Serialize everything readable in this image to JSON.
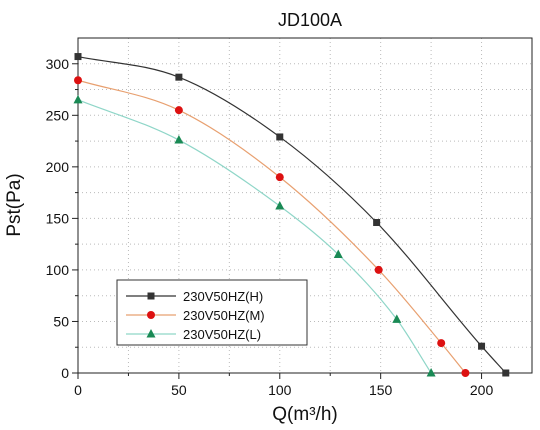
{
  "chart_data": {
    "type": "line",
    "title": "JD100A",
    "xlabel": "Q(m³/h)",
    "ylabel": "Pst(Pa)",
    "xlim": [
      0,
      225
    ],
    "ylim": [
      0,
      325
    ],
    "xticks": [
      0,
      50,
      100,
      150,
      200
    ],
    "yticks": [
      0,
      50,
      100,
      150,
      200,
      250,
      300
    ],
    "grid": true,
    "legend_position": "bottom-left",
    "series": [
      {
        "name": "230V50HZ(H)",
        "color": "#333333",
        "marker": "square",
        "x": [
          0,
          50,
          100,
          148,
          200,
          212
        ],
        "y": [
          307,
          287,
          229,
          146,
          26,
          0
        ]
      },
      {
        "name": "230V50HZ(M)",
        "color": "#e8a070",
        "marker": "circle",
        "marker_color": "#dd1111",
        "x": [
          0,
          50,
          100,
          149,
          180,
          192
        ],
        "y": [
          284,
          255,
          190,
          100,
          29,
          0
        ]
      },
      {
        "name": "230V50HZ(L)",
        "color": "#8fd6c8",
        "marker": "triangle",
        "marker_color": "#1a8a55",
        "x": [
          0,
          50,
          100,
          129,
          158,
          175
        ],
        "y": [
          265,
          226,
          162,
          115,
          52,
          0
        ]
      }
    ]
  }
}
